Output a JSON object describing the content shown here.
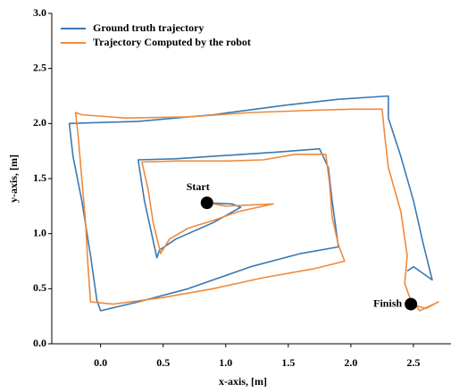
{
  "chart_data": {
    "type": "line",
    "xlabel": "x-axis, [m]",
    "ylabel": "y-axis, [m]",
    "xlim": [
      -0.39,
      2.8
    ],
    "ylim": [
      0,
      3
    ],
    "xticks": [
      {
        "value": 0,
        "label": "0.0"
      },
      {
        "value": 0.5,
        "label": "0.5"
      },
      {
        "value": 1,
        "label": "1.0"
      },
      {
        "value": 1.5,
        "label": "1.5"
      },
      {
        "value": 2,
        "label": "2.0"
      },
      {
        "value": 2.5,
        "label": "2.5"
      }
    ],
    "yticks": [
      {
        "value": 0,
        "label": "0.0"
      },
      {
        "value": 0.5,
        "label": "0.5"
      },
      {
        "value": 1,
        "label": "1.0"
      },
      {
        "value": 1.5,
        "label": "1.5"
      },
      {
        "value": 2,
        "label": "2.0"
      },
      {
        "value": 2.5,
        "label": "2.5"
      },
      {
        "value": 3,
        "label": "3.0"
      }
    ],
    "legend": "upper left",
    "series": [
      {
        "name": "Ground truth trajectory",
        "color": "#3a78b5",
        "x": [
          0.85,
          1.05,
          1.12,
          0.9,
          0.6,
          0.47,
          0.45,
          0.35,
          0.3,
          0.6,
          1.0,
          1.4,
          1.75,
          1.82,
          1.85,
          1.88,
          1.9,
          1.6,
          1.2,
          0.7,
          0.3,
          0.0,
          -0.03,
          -0.08,
          -0.15,
          -0.22,
          -0.25,
          0.3,
          0.9,
          1.5,
          1.9,
          2.3,
          2.3,
          2.4,
          2.5,
          2.58,
          2.65,
          2.5,
          2.45
        ],
        "values": [
          1.28,
          1.27,
          1.24,
          1.1,
          0.95,
          0.85,
          0.78,
          1.3,
          1.67,
          1.68,
          1.71,
          1.74,
          1.77,
          1.6,
          1.3,
          1.05,
          0.88,
          0.82,
          0.7,
          0.5,
          0.38,
          0.3,
          0.4,
          0.8,
          1.3,
          1.7,
          2.0,
          2.02,
          2.08,
          2.17,
          2.22,
          2.25,
          2.05,
          1.7,
          1.3,
          0.9,
          0.58,
          0.7,
          0.66
        ]
      },
      {
        "name": "Trajectory Computed by the robot",
        "color": "#ee8a3c",
        "x": [
          0.85,
          1.0,
          1.2,
          1.38,
          1.1,
          0.9,
          0.7,
          0.55,
          0.48,
          0.42,
          0.38,
          0.33,
          0.6,
          1.0,
          1.3,
          1.55,
          1.8,
          1.83,
          1.85,
          1.9,
          1.95,
          1.7,
          1.3,
          0.9,
          0.5,
          0.1,
          -0.08,
          -0.1,
          -0.12,
          -0.15,
          -0.18,
          -0.2,
          -0.15,
          0.2,
          0.7,
          1.2,
          1.7,
          2.0,
          2.25,
          2.27,
          2.3,
          2.4,
          2.45,
          2.43,
          2.47,
          2.55,
          2.7,
          2.6,
          2.48
        ],
        "values": [
          1.28,
          1.25,
          1.26,
          1.27,
          1.2,
          1.12,
          1.05,
          0.95,
          0.82,
          1.1,
          1.4,
          1.65,
          1.66,
          1.66,
          1.67,
          1.72,
          1.72,
          1.45,
          1.15,
          0.9,
          0.75,
          0.68,
          0.6,
          0.5,
          0.42,
          0.36,
          0.38,
          0.7,
          1.1,
          1.5,
          1.9,
          2.1,
          2.08,
          2.05,
          2.06,
          2.1,
          2.12,
          2.13,
          2.13,
          1.9,
          1.6,
          1.2,
          0.8,
          0.55,
          0.42,
          0.3,
          0.38,
          0.32,
          0.36
        ]
      }
    ],
    "points": [
      {
        "label": "Start",
        "x": 0.85,
        "y": 1.28
      },
      {
        "label": "Finish",
        "x": 2.48,
        "y": 0.36
      }
    ]
  }
}
